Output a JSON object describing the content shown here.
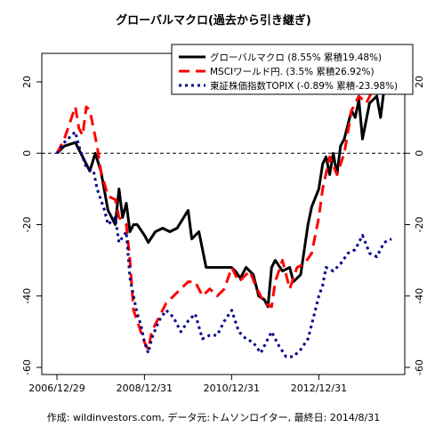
{
  "chart_data": {
    "type": "line",
    "title": "グローバルマクロ(過去から引き継ぎ)",
    "footer": "作成: wildinvestors.com, データ元:トムソンロイター, 最終日: 2014/8/31",
    "xlabel": "",
    "ylabel": "",
    "ylim": [
      -60,
      30
    ],
    "xlim": [
      "2006-12-29",
      "2014-08-31"
    ],
    "x_tick_labels": [
      "2006/12/29",
      "2008/12/31",
      "2010/12/31",
      "2012/12/31"
    ],
    "y_ticks": [
      -60,
      -40,
      -20,
      0,
      20
    ],
    "y_tick_labels": [
      "-60",
      "-40",
      "-20",
      "0",
      "20"
    ],
    "zero_line": true,
    "grid": false,
    "legend_position": "top-right",
    "series": [
      {
        "name": "グローバルマクロ (8.55% 累積19.48%)",
        "color": "#000000",
        "style": "solid",
        "points": [
          [
            "2006-12-29",
            0
          ],
          [
            "2007-03-01",
            2
          ],
          [
            "2007-06-01",
            3
          ],
          [
            "2007-08-01",
            -1
          ],
          [
            "2007-10-01",
            -5
          ],
          [
            "2007-11-15",
            0
          ],
          [
            "2008-01-01",
            -5
          ],
          [
            "2008-03-01",
            -16
          ],
          [
            "2008-05-01",
            -20
          ],
          [
            "2008-06-01",
            -10
          ],
          [
            "2008-07-01",
            -18
          ],
          [
            "2008-08-01",
            -14
          ],
          [
            "2008-09-01",
            -22
          ],
          [
            "2008-10-01",
            -20
          ],
          [
            "2008-11-01",
            -20
          ],
          [
            "2008-12-31",
            -23
          ],
          [
            "2009-02-01",
            -25
          ],
          [
            "2009-04-01",
            -22
          ],
          [
            "2009-06-01",
            -21
          ],
          [
            "2009-08-01",
            -22
          ],
          [
            "2009-10-01",
            -21
          ],
          [
            "2010-01-01",
            -16
          ],
          [
            "2010-02-01",
            -24
          ],
          [
            "2010-04-01",
            -22
          ],
          [
            "2010-06-01",
            -32
          ],
          [
            "2010-09-01",
            -32
          ],
          [
            "2010-12-31",
            -32
          ],
          [
            "2011-02-01",
            -33
          ],
          [
            "2011-03-15",
            -35
          ],
          [
            "2011-05-01",
            -32
          ],
          [
            "2011-07-01",
            -34
          ],
          [
            "2011-08-15",
            -40
          ],
          [
            "2011-10-01",
            -41
          ],
          [
            "2011-11-01",
            -43
          ],
          [
            "2011-12-01",
            -32
          ],
          [
            "2012-01-01",
            -30
          ],
          [
            "2012-03-01",
            -33
          ],
          [
            "2012-05-01",
            -32
          ],
          [
            "2012-06-01",
            -36
          ],
          [
            "2012-08-01",
            -34
          ],
          [
            "2012-10-01",
            -20
          ],
          [
            "2012-11-01",
            -15
          ],
          [
            "2012-12-31",
            -10
          ],
          [
            "2013-02-01",
            -3
          ],
          [
            "2013-03-01",
            -1
          ],
          [
            "2013-04-01",
            -6
          ],
          [
            "2013-05-01",
            0
          ],
          [
            "2013-06-01",
            -6
          ],
          [
            "2013-07-01",
            2
          ],
          [
            "2013-08-01",
            4
          ],
          [
            "2013-10-01",
            12
          ],
          [
            "2013-11-01",
            10
          ],
          [
            "2013-12-01",
            15
          ],
          [
            "2014-01-01",
            4
          ],
          [
            "2014-03-01",
            14
          ],
          [
            "2014-05-01",
            16
          ],
          [
            "2014-06-01",
            10
          ],
          [
            "2014-07-01",
            18
          ],
          [
            "2014-08-31",
            19.5
          ]
        ]
      },
      {
        "name": "MSCIワールド円. (3.5% 累積26.92%)",
        "color": "#ff0000",
        "style": "dashed",
        "points": [
          [
            "2006-12-29",
            0
          ],
          [
            "2007-03-01",
            4
          ],
          [
            "2007-05-01",
            10
          ],
          [
            "2007-06-01",
            13
          ],
          [
            "2007-07-01",
            7
          ],
          [
            "2007-08-01",
            5
          ],
          [
            "2007-09-01",
            13
          ],
          [
            "2007-10-01",
            12
          ],
          [
            "2007-12-01",
            2
          ],
          [
            "2008-01-01",
            -5
          ],
          [
            "2008-03-01",
            -12
          ],
          [
            "2008-05-01",
            -13
          ],
          [
            "2008-06-01",
            -18
          ],
          [
            "2008-08-01",
            -20
          ],
          [
            "2008-09-01",
            -30
          ],
          [
            "2008-10-01",
            -44
          ],
          [
            "2008-11-01",
            -47
          ],
          [
            "2008-12-01",
            -50
          ],
          [
            "2009-01-01",
            -53
          ],
          [
            "2009-02-01",
            -55
          ],
          [
            "2009-03-01",
            -50
          ],
          [
            "2009-05-01",
            -46
          ],
          [
            "2009-07-01",
            -42
          ],
          [
            "2009-09-01",
            -40
          ],
          [
            "2009-11-01",
            -38
          ],
          [
            "2010-01-01",
            -36
          ],
          [
            "2010-03-01",
            -36
          ],
          [
            "2010-05-01",
            -40
          ],
          [
            "2010-07-01",
            -38
          ],
          [
            "2010-09-01",
            -40
          ],
          [
            "2010-11-01",
            -38
          ],
          [
            "2011-01-01",
            -32
          ],
          [
            "2011-03-01",
            -36
          ],
          [
            "2011-06-01",
            -33
          ],
          [
            "2011-08-01",
            -38
          ],
          [
            "2011-10-01",
            -42
          ],
          [
            "2011-12-01",
            -43
          ],
          [
            "2012-01-01",
            -36
          ],
          [
            "2012-03-01",
            -30
          ],
          [
            "2012-05-01",
            -38
          ],
          [
            "2012-07-01",
            -32
          ],
          [
            "2012-09-01",
            -31
          ],
          [
            "2012-11-01",
            -28
          ],
          [
            "2012-12-31",
            -18
          ],
          [
            "2013-02-01",
            -10
          ],
          [
            "2013-04-01",
            -1
          ],
          [
            "2013-06-01",
            -6
          ],
          [
            "2013-08-01",
            0
          ],
          [
            "2013-10-01",
            12
          ],
          [
            "2013-12-01",
            16
          ],
          [
            "2014-02-01",
            14
          ],
          [
            "2014-04-01",
            18
          ],
          [
            "2014-06-01",
            22
          ],
          [
            "2014-08-31",
            27
          ]
        ]
      },
      {
        "name": "東証株価指数TOPIX (-0.89% 累積-23.98%)",
        "color": "#00008b",
        "style": "dotted",
        "points": [
          [
            "2006-12-29",
            0
          ],
          [
            "2007-03-01",
            3
          ],
          [
            "2007-05-01",
            5
          ],
          [
            "2007-06-01",
            6
          ],
          [
            "2007-07-01",
            2
          ],
          [
            "2007-09-01",
            -4
          ],
          [
            "2007-11-01",
            -5
          ],
          [
            "2007-12-01",
            -10
          ],
          [
            "2008-02-01",
            -16
          ],
          [
            "2008-03-01",
            -20
          ],
          [
            "2008-05-01",
            -18
          ],
          [
            "2008-06-01",
            -25
          ],
          [
            "2008-08-01",
            -22
          ],
          [
            "2008-09-01",
            -35
          ],
          [
            "2008-10-01",
            -40
          ],
          [
            "2008-11-01",
            -45
          ],
          [
            "2008-12-01",
            -48
          ],
          [
            "2009-01-01",
            -53
          ],
          [
            "2009-02-01",
            -56
          ],
          [
            "2009-03-01",
            -52
          ],
          [
            "2009-05-01",
            -47
          ],
          [
            "2009-07-01",
            -44
          ],
          [
            "2009-09-01",
            -46
          ],
          [
            "2009-11-01",
            -50
          ],
          [
            "2010-01-01",
            -47
          ],
          [
            "2010-03-01",
            -45
          ],
          [
            "2010-05-01",
            -52
          ],
          [
            "2010-07-01",
            -51
          ],
          [
            "2010-09-01",
            -51
          ],
          [
            "2010-11-01",
            -47
          ],
          [
            "2011-01-01",
            -44
          ],
          [
            "2011-03-01",
            -50
          ],
          [
            "2011-05-01",
            -52
          ],
          [
            "2011-07-01",
            -53
          ],
          [
            "2011-09-01",
            -56
          ],
          [
            "2011-11-01",
            -52
          ],
          [
            "2011-12-01",
            -50
          ],
          [
            "2012-02-01",
            -54
          ],
          [
            "2012-04-01",
            -57
          ],
          [
            "2012-06-01",
            -57
          ],
          [
            "2012-08-01",
            -55
          ],
          [
            "2012-10-01",
            -52
          ],
          [
            "2012-11-01",
            -48
          ],
          [
            "2012-12-31",
            -40
          ],
          [
            "2013-02-01",
            -37
          ],
          [
            "2013-03-01",
            -32
          ],
          [
            "2013-05-01",
            -33
          ],
          [
            "2013-07-01",
            -31
          ],
          [
            "2013-09-01",
            -28
          ],
          [
            "2013-11-01",
            -27
          ],
          [
            "2014-01-01",
            -23
          ],
          [
            "2014-03-01",
            -28
          ],
          [
            "2014-05-01",
            -29
          ],
          [
            "2014-07-01",
            -25
          ],
          [
            "2014-08-31",
            -24
          ]
        ]
      }
    ]
  }
}
